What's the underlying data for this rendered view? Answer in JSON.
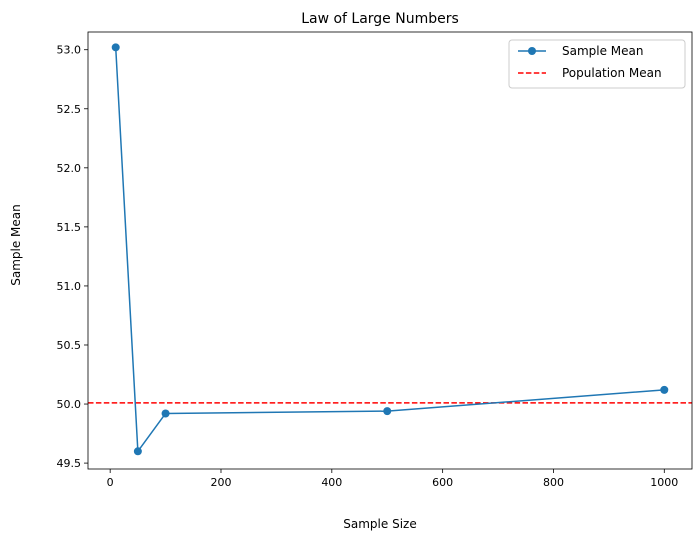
{
  "chart_data": {
    "type": "line",
    "title": "Law of Large Numbers",
    "xlabel": "Sample Size",
    "ylabel": "Sample Mean",
    "xlim": [
      -40,
      1050
    ],
    "ylim": [
      49.45,
      53.15
    ],
    "xticks": [
      0,
      200,
      400,
      600,
      800,
      1000
    ],
    "yticks": [
      49.5,
      50.0,
      50.5,
      51.0,
      51.5,
      52.0,
      52.5,
      53.0
    ],
    "xtick_labels": [
      "0",
      "200",
      "400",
      "600",
      "800",
      "1000"
    ],
    "ytick_labels": [
      "49.5",
      "50.0",
      "50.5",
      "51.0",
      "51.5",
      "52.0",
      "52.5",
      "53.0"
    ],
    "grid": false,
    "legend_position": "top-right",
    "series": [
      {
        "name": "Sample Mean",
        "x": [
          10,
          50,
          100,
          500,
          1000
        ],
        "y": [
          53.02,
          49.6,
          49.92,
          49.94,
          50.12
        ],
        "color": "#1f77b4",
        "style": "solid",
        "marker": "circle"
      }
    ],
    "hlines": [
      {
        "name": "Population Mean",
        "y": 50.01,
        "color": "#ff0000",
        "style": "dashed"
      }
    ]
  }
}
